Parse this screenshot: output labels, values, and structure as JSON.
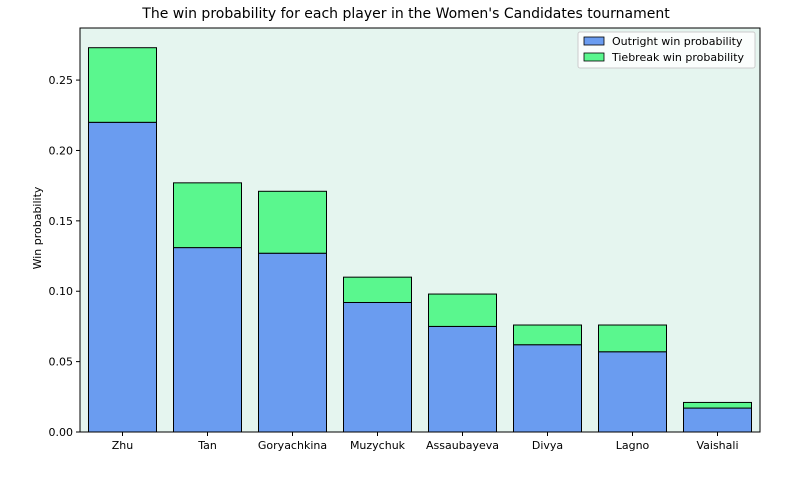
{
  "chart_data": {
    "type": "bar",
    "stacked": true,
    "title": "The win probability for each player in the Women's Candidates tournament",
    "xlabel": "",
    "ylabel": "Win probability",
    "categories": [
      "Zhu",
      "Tan",
      "Goryachkina",
      "Muzychuk",
      "Assaubayeva",
      "Divya",
      "Lagno",
      "Vaishali"
    ],
    "series": [
      {
        "name": "Outright win probability",
        "color": "#6a9cf0",
        "values": [
          0.22,
          0.131,
          0.127,
          0.092,
          0.075,
          0.062,
          0.057,
          0.017
        ]
      },
      {
        "name": "Tiebreak win probability",
        "color": "#5af78e",
        "values": [
          0.053,
          0.046,
          0.044,
          0.018,
          0.023,
          0.014,
          0.019,
          0.004
        ]
      }
    ],
    "ylim": [
      0,
      0.287
    ],
    "yticks": [
      "0.00",
      "0.05",
      "0.10",
      "0.15",
      "0.20",
      "0.25"
    ],
    "ytick_values": [
      0,
      0.05,
      0.1,
      0.15,
      0.2,
      0.25
    ],
    "plot_background": "#e5f5ef",
    "legend_position": "top-right",
    "grid": false
  }
}
